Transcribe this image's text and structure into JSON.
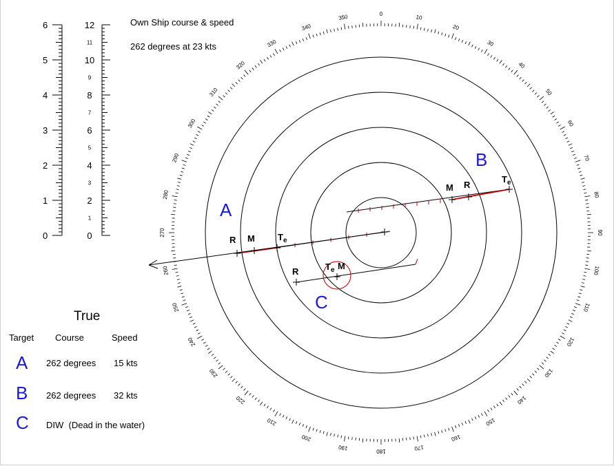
{
  "own_ship": {
    "caption": "Own Ship course & speed",
    "value": "262 degrees at 23 kts",
    "course": 262
  },
  "scales": {
    "left_labels": [
      "0",
      "1",
      "2",
      "3",
      "4",
      "5",
      "6"
    ],
    "right_major_labels": [
      "0",
      "2",
      "4",
      "6",
      "8",
      "10",
      "12"
    ],
    "right_minor_labels": [
      "1",
      "3",
      "5",
      "7",
      "9",
      "11"
    ]
  },
  "compass": {
    "labels": [
      "0",
      "10",
      "20",
      "30",
      "40",
      "50",
      "60",
      "70",
      "80",
      "90",
      "100",
      "110",
      "120",
      "130",
      "140",
      "150",
      "160",
      "170",
      "180",
      "190",
      "200",
      "210",
      "220",
      "230",
      "240",
      "250",
      "260",
      "270",
      "280",
      "290",
      "300",
      "310",
      "320",
      "330",
      "340",
      "350"
    ]
  },
  "plot": {
    "marker_labels": {
      "r": "R",
      "m": "M",
      "t": "T",
      "t_sub": "e"
    },
    "targets": [
      {
        "id": "A",
        "letter": "A"
      },
      {
        "id": "B",
        "letter": "B"
      },
      {
        "id": "C",
        "letter": "C"
      }
    ]
  },
  "table": {
    "title": "True",
    "headers": {
      "target": "Target",
      "course": "Course",
      "speed": "Speed"
    },
    "rows": [
      {
        "letter": "A",
        "course": "262 degrees",
        "speed": "15 kts"
      },
      {
        "letter": "B",
        "course": "262 degrees",
        "speed": "32 kts"
      },
      {
        "letter": "C",
        "course": "DIW  (Dead in the water)",
        "speed": ""
      }
    ]
  },
  "colors": {
    "target_letter": "#1a1adc",
    "red_line": "#c00000",
    "black": "#000000"
  }
}
